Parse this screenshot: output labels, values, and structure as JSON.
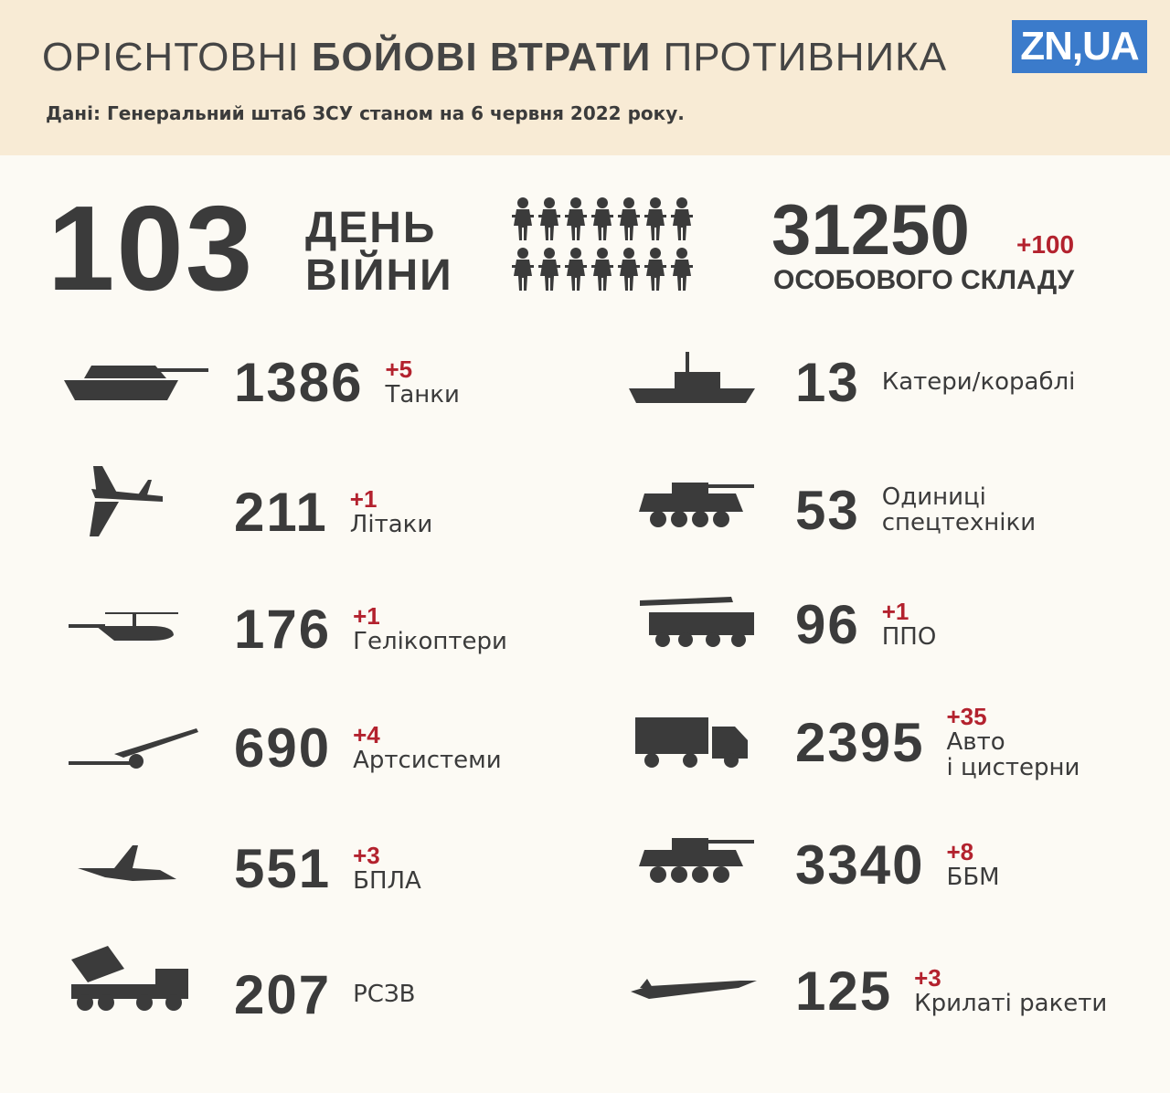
{
  "header": {
    "title_start": "ОРІЄНТОВНІ",
    "title_bold": "БОЙОВІ ВТРАТИ",
    "title_end": "ПРОТИВНИКА",
    "logo": "ZN,UA",
    "subtitle": "Дані: Генеральний штаб ЗСУ станом на 6 червня 2022 року."
  },
  "day": {
    "number": "103",
    "word1": "ДЕНЬ",
    "word2": "ВІЙНИ"
  },
  "personnel": {
    "count": "31250",
    "delta": "+100",
    "label": "ОСОБОВОГО СКЛАДУ"
  },
  "left": [
    {
      "count": "1386",
      "delta": "+5",
      "label": [
        "Танки"
      ]
    },
    {
      "count": "211",
      "delta": "+1",
      "label": [
        "Літаки"
      ]
    },
    {
      "count": "176",
      "delta": "+1",
      "label": [
        "Гелікоптери"
      ]
    },
    {
      "count": "690",
      "delta": "+4",
      "label": [
        "Артсистеми"
      ]
    },
    {
      "count": "551",
      "delta": "+3",
      "label": [
        "БПЛА"
      ]
    },
    {
      "count": "207",
      "label": [
        "РСЗВ"
      ]
    }
  ],
  "right": [
    {
      "count": "13",
      "label": [
        "Катери/кораблі"
      ]
    },
    {
      "count": "53",
      "label": [
        "Одиниці",
        "спецтехніки"
      ]
    },
    {
      "count": "96",
      "delta": "+1",
      "label": [
        "ППО"
      ]
    },
    {
      "count": "2395",
      "delta": "+35",
      "label": [
        "Авто",
        "і цистерни"
      ]
    },
    {
      "count": "3340",
      "delta": "+8",
      "label": [
        "ББМ"
      ]
    },
    {
      "count": "125",
      "delta": "+3",
      "label": [
        "Крилаті ракети"
      ]
    }
  ]
}
